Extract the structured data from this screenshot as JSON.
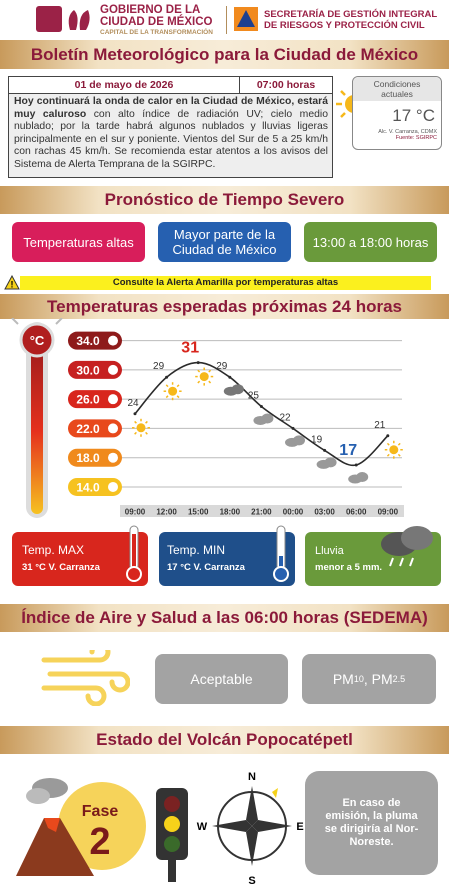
{
  "header": {
    "gov_line1": "GOBIERNO DE LA",
    "gov_line2": "CIUDAD DE MÉXICO",
    "gov_tagline": "CAPITAL DE LA TRANSFORMACIÓN",
    "agency_line1": "SECRETARÍA DE GESTIÓN INTEGRAL",
    "agency_line2": "DE RIESGOS Y PROTECCIÓN CIVIL"
  },
  "title": "Boletín Meteorológico para la Ciudad de México",
  "bulletin": {
    "date": "01 de mayo de 2026",
    "time": "07:00 horas",
    "text_bold": "Hoy continuará la onda de calor en la Ciudad de México, estará muy caluroso",
    "text_rest": " con alto índice de radiación UV; cielo medio nublado; por la tarde habrá algunos nublados y lluvias ligeras principalmente en el sur y poniente. Vientos del Sur de 5 a 25 km/h con rachas 45 km/h. Se recomienda estar atentos a los avisos del Sistema de Alerta Temprana de la SGIRPC."
  },
  "current": {
    "label": "Condiciones actuales",
    "temperature": "17 °C",
    "location": "Alc. V. Carranza, CDMX",
    "source": "Fuente: SGIRPC"
  },
  "severe": {
    "title": "Pronóstico de Tiempo Severo",
    "phenomenon": "Temperaturas altas",
    "area": "Mayor parte de la Ciudad de México",
    "period": "13:00 a 18:00 horas",
    "alert": "Consulte la Alerta Amarilla por temperaturas altas"
  },
  "forecast": {
    "title": "Temperaturas esperadas próximas 24 horas",
    "unit": "°C",
    "times": [
      "09:00",
      "12:00",
      "15:00",
      "18:00",
      "21:00",
      "00:00",
      "03:00",
      "06:00",
      "09:00"
    ],
    "values": [
      24,
      29,
      31,
      29,
      25,
      22,
      19,
      17,
      21
    ],
    "ylim": [
      12,
      36
    ],
    "yticks": [
      {
        "value": 34,
        "label": "34.0"
      },
      {
        "value": 30,
        "label": "30.0"
      },
      {
        "value": 26,
        "label": "26.0"
      },
      {
        "value": 22,
        "label": "22.0"
      },
      {
        "value": 18,
        "label": "18.0"
      },
      {
        "value": 14,
        "label": "14.0"
      }
    ],
    "tick_colors": [
      "#8e1b1b",
      "#c62020",
      "#d8261d",
      "#e8491c",
      "#f08a1c",
      "#f6c220"
    ],
    "line_color": "#2b2b2b"
  },
  "summary": {
    "max_label": "Temp. MAX",
    "max_value": "31 °C  V. Carranza",
    "min_label": "Temp. MIN",
    "min_value": "17 °C  V. Carranza",
    "rain_label": "Lluvia",
    "rain_value": "menor a 5 mm."
  },
  "air": {
    "title": "Índice de Aire y Salud a las 06:00 horas (SEDEMA)",
    "quality": "Aceptable",
    "pollutant1": "PM",
    "pollutant1_sub": "10",
    "separator": ", PM",
    "pollutant2_sub": "2.5"
  },
  "volcano": {
    "title": "Estado del Volcán Popocatépetl",
    "phase_label": "Fase",
    "phase": "2",
    "north": "N",
    "south": "S",
    "east": "E",
    "west": "W",
    "plume": "En caso de emisión, la pluma se dirigiría al Nor-Noreste."
  }
}
